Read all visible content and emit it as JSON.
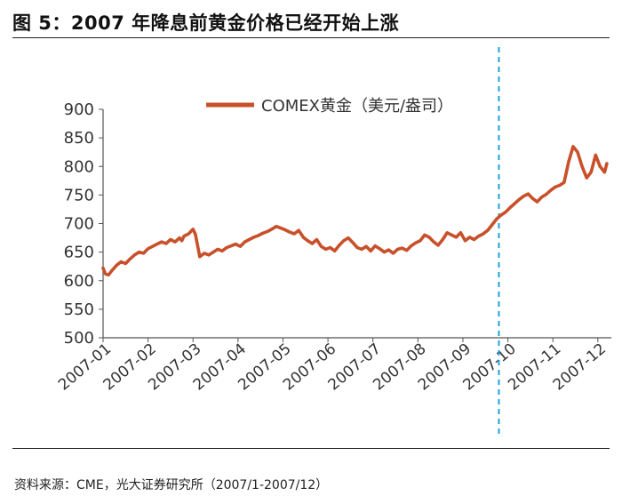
{
  "figure": {
    "title": "图 5：2007 年降息前黄金价格已经开始上涨",
    "source": "资料来源：CME，光大证券研究所（2007/1-2007/12）"
  },
  "colors": {
    "series": "#c8502a",
    "marker_line": "#1fa3dc",
    "axis": "#555555"
  },
  "chart_data": {
    "type": "line",
    "title": "",
    "xlabel": "",
    "ylabel": "",
    "ylim": [
      500,
      900
    ],
    "yticks": [
      500,
      550,
      600,
      650,
      700,
      750,
      800,
      850,
      900
    ],
    "xlim": [
      0,
      11.3
    ],
    "xticks": [
      "2007-01",
      "2007-02",
      "2007-03",
      "2007-04",
      "2007-05",
      "2007-06",
      "2007-07",
      "2007-08",
      "2007-09",
      "2007-10",
      "2007-11",
      "2007-12"
    ],
    "grid": false,
    "legend_position": "top-center",
    "vertical_marker": {
      "x": 8.8,
      "style": "dashed"
    },
    "series": [
      {
        "name": "COMEX黄金（美元/盎司）",
        "x": [
          0,
          0.05,
          0.12,
          0.2,
          0.3,
          0.4,
          0.5,
          0.6,
          0.7,
          0.8,
          0.9,
          1.0,
          1.1,
          1.2,
          1.3,
          1.4,
          1.5,
          1.6,
          1.7,
          1.75,
          1.8,
          1.9,
          1.95,
          2.0,
          2.05,
          2.15,
          2.25,
          2.35,
          2.45,
          2.55,
          2.65,
          2.75,
          2.85,
          2.95,
          3.05,
          3.15,
          3.25,
          3.35,
          3.45,
          3.55,
          3.65,
          3.75,
          3.85,
          3.95,
          4.05,
          4.15,
          4.25,
          4.35,
          4.45,
          4.55,
          4.65,
          4.75,
          4.85,
          4.95,
          5.05,
          5.15,
          5.25,
          5.35,
          5.45,
          5.55,
          5.65,
          5.75,
          5.85,
          5.95,
          6.05,
          6.15,
          6.25,
          6.35,
          6.45,
          6.55,
          6.65,
          6.75,
          6.85,
          6.95,
          7.05,
          7.15,
          7.25,
          7.35,
          7.45,
          7.55,
          7.65,
          7.75,
          7.85,
          7.95,
          8.05,
          8.15,
          8.25,
          8.35,
          8.45,
          8.55,
          8.65,
          8.75,
          8.85,
          8.95,
          9.05,
          9.15,
          9.25,
          9.35,
          9.45,
          9.55,
          9.65,
          9.75,
          9.85,
          9.95,
          10.05,
          10.15,
          10.25,
          10.3,
          10.35,
          10.45,
          10.55,
          10.65,
          10.75,
          10.85,
          10.95,
          11.05,
          11.15,
          11.2
        ],
        "values": [
          622,
          612,
          610,
          618,
          627,
          633,
          630,
          638,
          645,
          650,
          648,
          656,
          660,
          664,
          668,
          665,
          672,
          668,
          675,
          670,
          678,
          682,
          686,
          690,
          682,
          642,
          648,
          645,
          650,
          655,
          652,
          658,
          661,
          664,
          660,
          668,
          672,
          676,
          679,
          683,
          686,
          690,
          695,
          692,
          689,
          685,
          682,
          688,
          676,
          670,
          665,
          672,
          660,
          655,
          658,
          652,
          662,
          670,
          675,
          667,
          658,
          655,
          660,
          652,
          661,
          656,
          650,
          654,
          648,
          655,
          657,
          653,
          661,
          666,
          670,
          680,
          676,
          668,
          662,
          672,
          684,
          680,
          676,
          684,
          670,
          676,
          672,
          678,
          682,
          688,
          698,
          708,
          715,
          720,
          728,
          735,
          742,
          748,
          752,
          744,
          738,
          746,
          751,
          758,
          764,
          767,
          772,
          790,
          808,
          835,
          825,
          800,
          780,
          790,
          820,
          800,
          790,
          805
        ]
      }
    ]
  }
}
